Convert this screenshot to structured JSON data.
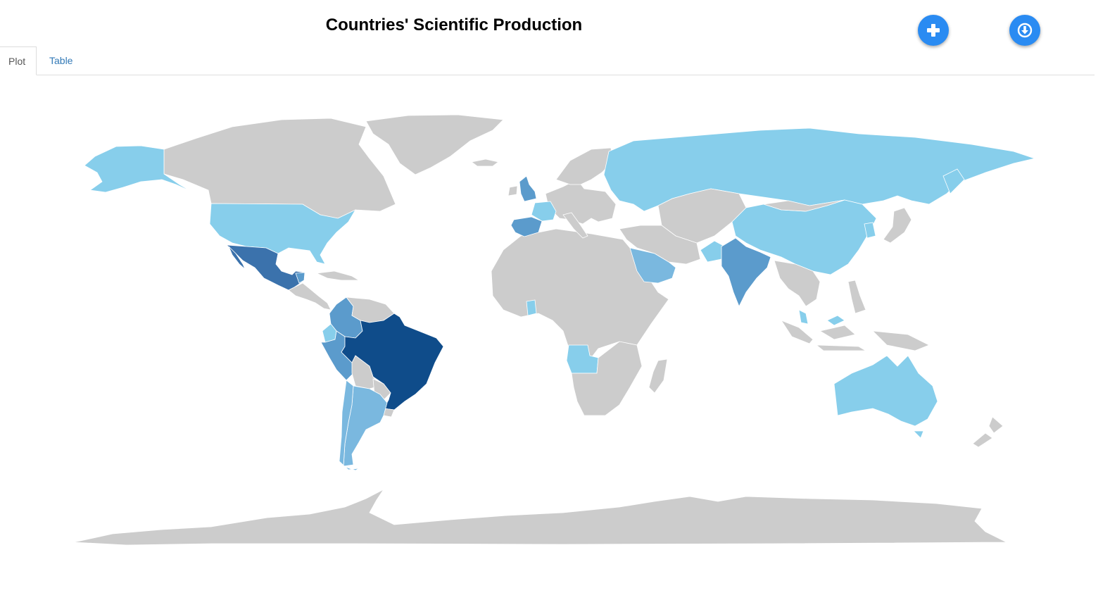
{
  "title": "Countries' Scientific Production",
  "buttons": {
    "add_icon": "plus-icon",
    "download_icon": "download-circle-icon"
  },
  "tabs": [
    {
      "label": "Plot",
      "active": true
    },
    {
      "label": "Table",
      "active": false
    }
  ],
  "colors": {
    "no_data": "#cccccc",
    "level_1": "#87ceeb",
    "level_2": "#7ab8df",
    "level_3": "#5b9bcc",
    "level_4": "#3b72ac",
    "level_5": "#0f4c8a",
    "accent": "#2a8bf2"
  },
  "map_data": {
    "type": "choropleth",
    "countries": [
      {
        "name": "Brazil",
        "level": 5
      },
      {
        "name": "Mexico",
        "level": 4
      },
      {
        "name": "Colombia",
        "level": 3
      },
      {
        "name": "Peru",
        "level": 3
      },
      {
        "name": "Spain",
        "level": 3
      },
      {
        "name": "India",
        "level": 3
      },
      {
        "name": "Saudi Arabia",
        "level": 2
      },
      {
        "name": "Argentina",
        "level": 2
      },
      {
        "name": "Chile",
        "level": 2
      },
      {
        "name": "Ecuador",
        "level": 1
      },
      {
        "name": "United States",
        "level": 1
      },
      {
        "name": "Alaska",
        "level": 1
      },
      {
        "name": "China",
        "level": 1
      },
      {
        "name": "Russia",
        "level": 1
      },
      {
        "name": "Australia",
        "level": 1
      },
      {
        "name": "Angola",
        "level": 1
      },
      {
        "name": "Ghana",
        "level": 1
      },
      {
        "name": "United Kingdom",
        "level": 3
      },
      {
        "name": "France",
        "level": 1
      },
      {
        "name": "Malaysia",
        "level": 1
      },
      {
        "name": "Pakistan",
        "level": 1
      },
      {
        "name": "Korea",
        "level": 1
      },
      {
        "name": "Guatemala",
        "level": 3
      }
    ]
  }
}
